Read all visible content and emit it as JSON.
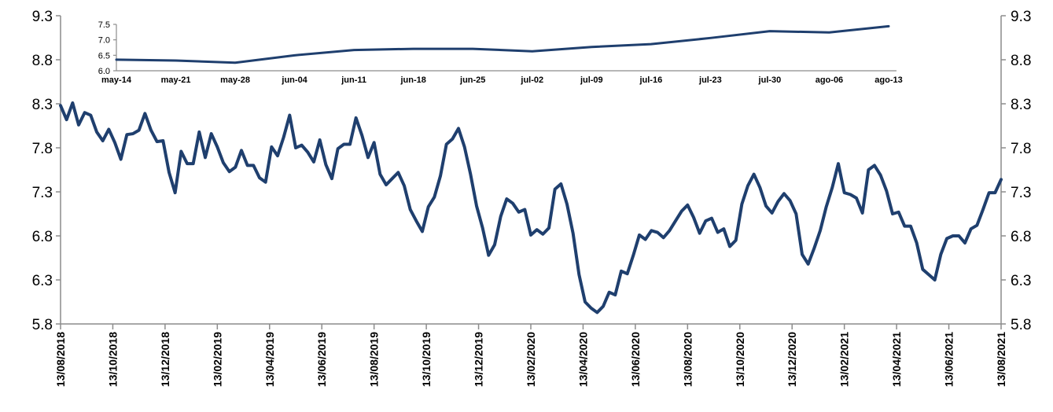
{
  "colors": {
    "series": "#1f3f6e",
    "axis": "#8c8c8c"
  },
  "chart_data": [
    {
      "type": "line",
      "title": "",
      "xlabel": "",
      "ylabel": "",
      "ylim": [
        5.8,
        9.3
      ],
      "y_ticks": [
        "5.8",
        "6.3",
        "6.8",
        "7.3",
        "7.8",
        "8.3",
        "8.8",
        "9.3"
      ],
      "secondary_y_ticks": [
        "5.8",
        "6.3",
        "6.8",
        "7.3",
        "7.8",
        "8.3",
        "8.8",
        "9.3"
      ],
      "grid": false,
      "x_tick_labels": [
        "13/08/2018",
        "13/10/2018",
        "13/12/2018",
        "13/02/2019",
        "13/04/2019",
        "13/06/2019",
        "13/08/2019",
        "13/10/2019",
        "13/12/2019",
        "13/02/2020",
        "13/04/2020",
        "13/06/2020",
        "13/08/2020",
        "13/10/2020",
        "13/12/2020",
        "13/02/2021",
        "13/04/2021",
        "13/06/2021",
        "13/08/2021"
      ],
      "series": [
        {
          "values": [
            8.28,
            8.12,
            8.31,
            8.06,
            8.2,
            8.17,
            7.98,
            7.88,
            8.01,
            7.86,
            7.67,
            7.95,
            7.96,
            8.0,
            8.19,
            8.0,
            7.87,
            7.88,
            7.52,
            7.29,
            7.76,
            7.62,
            7.62,
            7.98,
            7.69,
            7.96,
            7.81,
            7.63,
            7.53,
            7.58,
            7.77,
            7.6,
            7.6,
            7.46,
            7.41,
            7.81,
            7.71,
            7.92,
            8.17,
            7.8,
            7.83,
            7.75,
            7.64,
            7.89,
            7.61,
            7.45,
            7.79,
            7.84,
            7.84,
            8.14,
            7.94,
            7.69,
            7.86,
            7.5,
            7.38,
            7.45,
            7.52,
            7.37,
            7.1,
            6.97,
            6.85,
            7.13,
            7.24,
            7.48,
            7.84,
            7.9,
            8.02,
            7.81,
            7.5,
            7.14,
            6.89,
            6.58,
            6.7,
            7.02,
            7.22,
            7.17,
            7.07,
            7.1,
            6.81,
            6.87,
            6.82,
            6.89,
            7.33,
            7.39,
            7.16,
            6.83,
            6.36,
            6.05,
            5.98,
            5.93,
            6.0,
            6.16,
            6.13,
            6.4,
            6.37,
            6.58,
            6.81,
            6.76,
            6.86,
            6.84,
            6.78,
            6.86,
            6.97,
            7.08,
            7.15,
            7.01,
            6.83,
            6.97,
            7.0,
            6.84,
            6.88,
            6.68,
            6.75,
            7.16,
            7.37,
            7.5,
            7.35,
            7.14,
            7.06,
            7.19,
            7.28,
            7.2,
            7.05,
            6.59,
            6.48,
            6.66,
            6.86,
            7.13,
            7.35,
            7.62,
            7.29,
            7.27,
            7.23,
            7.06,
            7.55,
            7.6,
            7.49,
            7.31,
            7.05,
            7.07,
            6.91,
            6.91,
            6.72,
            6.42,
            6.36,
            6.3,
            6.59,
            6.77,
            6.8,
            6.8,
            6.72,
            6.88,
            6.92,
            7.1,
            7.29,
            7.29,
            7.44
          ]
        }
      ]
    },
    {
      "type": "line",
      "title": "",
      "xlabel": "",
      "ylabel": "",
      "ylim": [
        6.0,
        7.5
      ],
      "y_ticks": [
        "6.0",
        "6.5",
        "7.0",
        "7.5"
      ],
      "grid": false,
      "categories": [
        "may-14",
        "may-21",
        "may-28",
        "jun-04",
        "jun-11",
        "jun-18",
        "jun-25",
        "jul-02",
        "jul-09",
        "jul-16",
        "jul-23",
        "jul-30",
        "ago-06",
        "ago-13"
      ],
      "series": [
        {
          "values": [
            6.36,
            6.33,
            6.26,
            6.5,
            6.67,
            6.71,
            6.71,
            6.63,
            6.77,
            6.86,
            7.06,
            7.28,
            7.24,
            7.44
          ]
        }
      ]
    }
  ]
}
